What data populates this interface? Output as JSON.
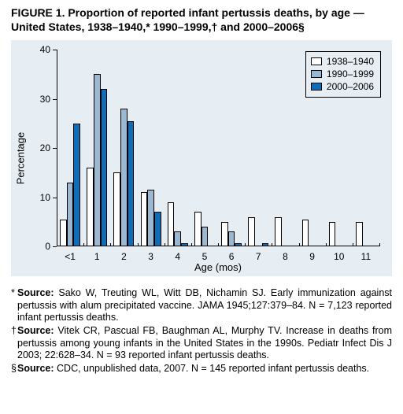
{
  "title": "FIGURE 1. Proportion of reported infant pertussis deaths, by age — United States, 1938–1940,* 1990–1999,† and 2000–2006§",
  "chart": {
    "type": "bar",
    "background_color": "#e6edf3",
    "ylabel": "Percentage",
    "xlabel": "Age (mos)",
    "label_fontsize": 13,
    "tick_fontsize": 12,
    "ylim": [
      0,
      40
    ],
    "ytick_step": 10,
    "categories": [
      "<1",
      "1",
      "2",
      "3",
      "4",
      "5",
      "6",
      "7",
      "8",
      "9",
      "10",
      "11"
    ],
    "series": [
      {
        "name": "1938–1940",
        "color": "#ffffff",
        "border": "#000000",
        "values": [
          5.5,
          16,
          15,
          11,
          9,
          7,
          5,
          6,
          6,
          5.5,
          5,
          5
        ]
      },
      {
        "name": "1990–1999",
        "color": "#9bb8d3",
        "border": "#000000",
        "values": [
          13,
          35,
          28,
          11.5,
          3,
          4,
          3,
          null,
          null,
          null,
          null,
          null
        ]
      },
      {
        "name": "2000–2006",
        "color": "#0f6db8",
        "border": "#000000",
        "values": [
          25,
          32,
          25.5,
          7,
          0.7,
          null,
          0.7,
          0.7,
          null,
          null,
          null,
          null
        ]
      }
    ],
    "group_inner_gap": 0,
    "group_outer_pad": 0.25,
    "axis_color": "#000000"
  },
  "legend": {
    "items": [
      {
        "swatch": "#ffffff",
        "label": "1938–1940"
      },
      {
        "swatch": "#9bb8d3",
        "label": "1990–1999"
      },
      {
        "swatch": "#0f6db8",
        "label": "2000–2006"
      }
    ]
  },
  "footnotes": [
    {
      "mark": "*",
      "bold_lead": "Source:",
      "text": " Sako W, Treuting WL, Witt DB, Nichamin SJ. Early immunization against pertussis with alum precipitated vaccine. JAMA 1945;127:379–84. N = 7,123 reported infant pertussis deaths."
    },
    {
      "mark": "†",
      "bold_lead": "Source:",
      "text": " Vitek CR, Pascual FB, Baughman AL, Murphy TV. Increase in deaths from pertussis among young infants in the United States in the 1990s. Pediatr Infect Dis J 2003; 22:628–34. N = 93 reported infant pertussis deaths."
    },
    {
      "mark": "§",
      "bold_lead": "Source:",
      "text": " CDC, unpublished data, 2007. N = 145 reported infant pertussis deaths."
    }
  ]
}
